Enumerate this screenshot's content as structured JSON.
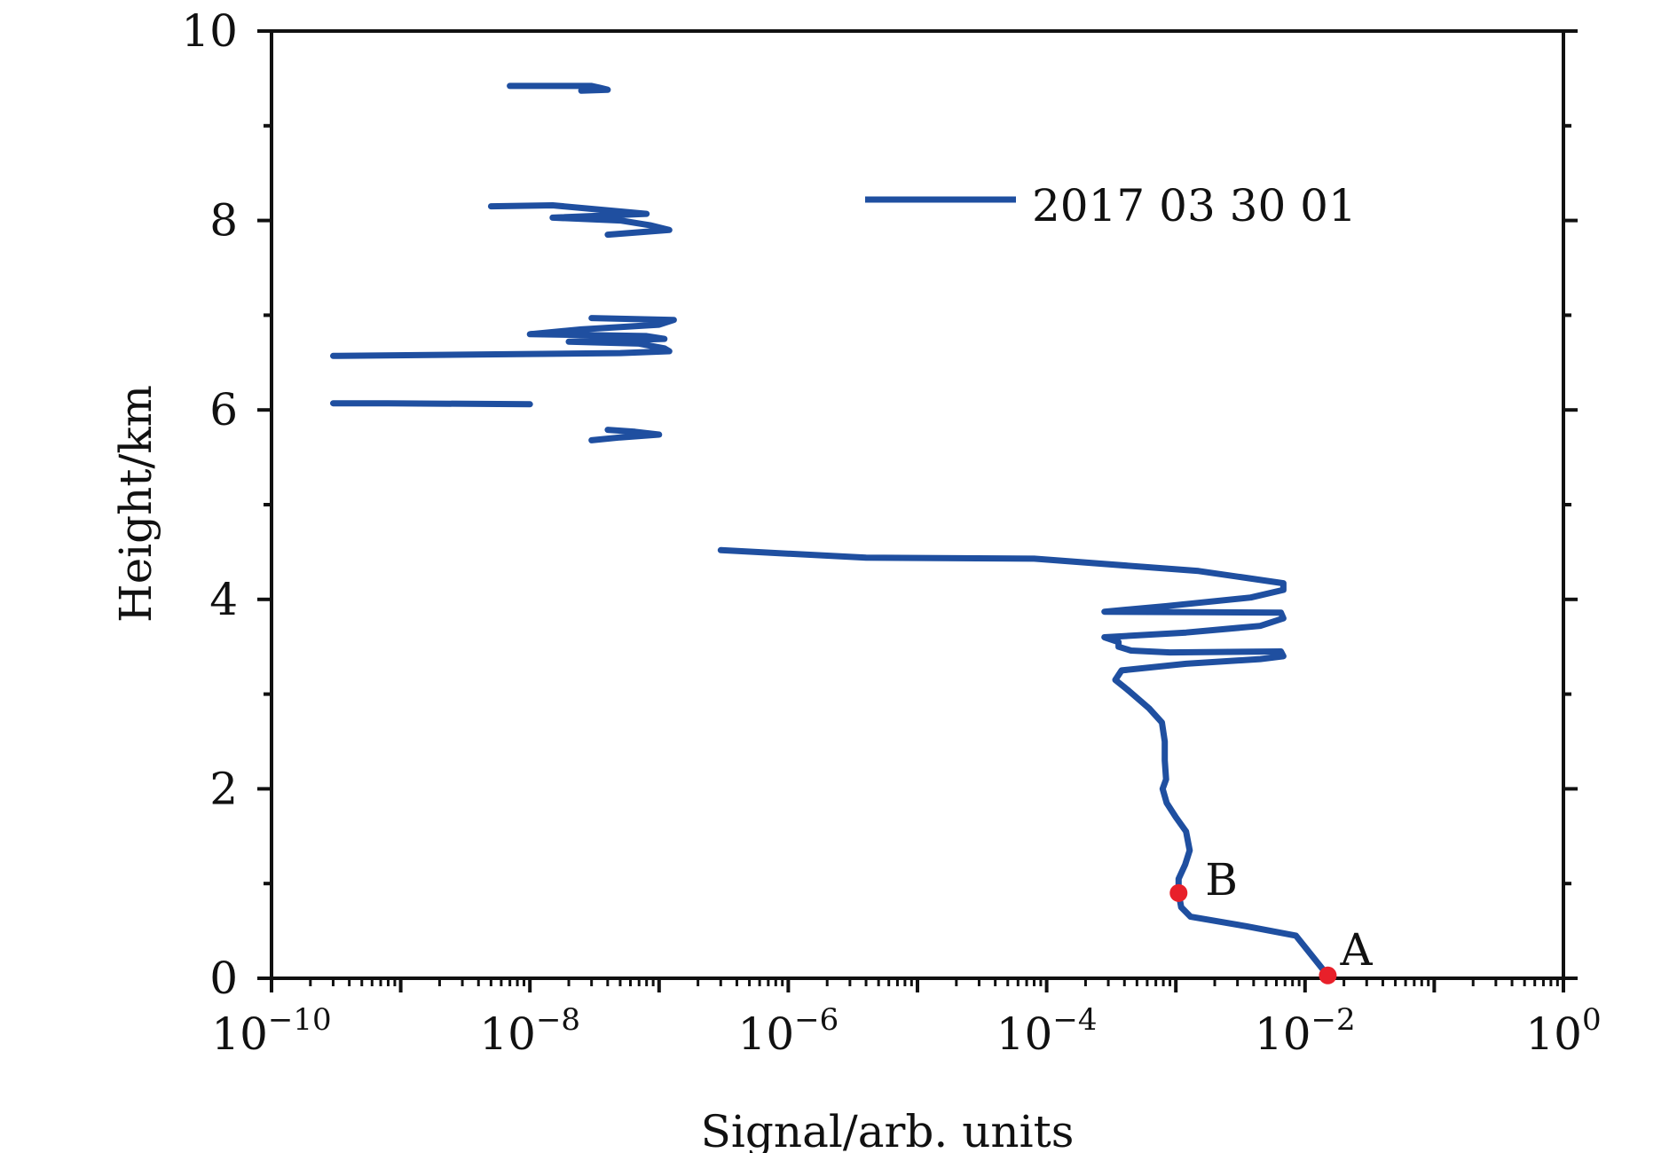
{
  "chart_data": {
    "type": "line",
    "title": "",
    "xlabel": "Signal/arb. units",
    "ylabel": "Height/km",
    "xscale": "log",
    "xlim": [
      1e-10,
      1
    ],
    "ylim": [
      0,
      10
    ],
    "grid": false,
    "legend_position": "top-right",
    "colors": {
      "series": "#1f4fa0",
      "points": "#e8202a",
      "axis": "#111111"
    },
    "x_ticks": [
      {
        "base": "10",
        "exp": "−10"
      },
      {
        "base": "10",
        "exp": "−8"
      },
      {
        "base": "10",
        "exp": "−6"
      },
      {
        "base": "10",
        "exp": "−4"
      },
      {
        "base": "10",
        "exp": "−2"
      },
      {
        "base": "10",
        "exp": "0"
      }
    ],
    "y_ticks": [
      "0",
      "2",
      "4",
      "6",
      "8",
      "10"
    ],
    "series": [
      {
        "name": "2017 03 30 01",
        "segments": [
          [
            [
              0.015,
              0.03
            ],
            [
              0.0085,
              0.45
            ],
            [
              0.0035,
              0.55
            ],
            [
              0.0013,
              0.65
            ],
            [
              0.0011,
              0.75
            ],
            [
              0.00105,
              0.9
            ],
            [
              0.00105,
              1.05
            ],
            [
              0.00118,
              1.2
            ],
            [
              0.00128,
              1.35
            ],
            [
              0.0012,
              1.55
            ],
            [
              0.001,
              1.7
            ],
            [
              0.00085,
              1.85
            ],
            [
              0.00079,
              2.0
            ],
            [
              0.00084,
              2.1
            ],
            [
              0.00082,
              2.3
            ],
            [
              0.00082,
              2.5
            ],
            [
              0.00078,
              2.7
            ],
            [
              0.00062,
              2.85
            ],
            [
              0.00042,
              3.05
            ],
            [
              0.00034,
              3.15
            ],
            [
              0.00038,
              3.25
            ],
            [
              0.0012,
              3.32
            ],
            [
              0.0045,
              3.37
            ],
            [
              0.0068,
              3.4
            ],
            [
              0.0065,
              3.45
            ],
            [
              0.0009,
              3.44
            ],
            [
              0.00045,
              3.46
            ],
            [
              0.00036,
              3.5
            ],
            [
              0.00036,
              3.55
            ],
            [
              0.00028,
              3.6
            ],
            [
              0.0012,
              3.65
            ],
            [
              0.0045,
              3.72
            ],
            [
              0.0068,
              3.8
            ],
            [
              0.0065,
              3.86
            ],
            [
              0.00028,
              3.87
            ],
            [
              0.00085,
              3.93
            ],
            [
              0.0038,
              4.02
            ],
            [
              0.0068,
              4.1
            ],
            [
              0.0068,
              4.17
            ],
            [
              0.0015,
              4.3
            ],
            [
              8e-05,
              4.43
            ],
            [
              4e-06,
              4.44
            ],
            [
              3e-07,
              4.52
            ]
          ],
          [
            [
              7e-09,
              9.42
            ],
            [
              3e-08,
              9.42
            ],
            [
              3.5e-08,
              9.4
            ],
            [
              4e-08,
              9.38
            ],
            [
              2.5e-08,
              9.37
            ]
          ],
          [
            [
              5e-09,
              8.15
            ],
            [
              1.5e-08,
              8.16
            ],
            [
              8e-08,
              8.07
            ],
            [
              1.5e-08,
              8.03
            ],
            [
              5e-08,
              8.0
            ],
            [
              8.5e-08,
              7.95
            ],
            [
              1.2e-07,
              7.9
            ],
            [
              4e-08,
              7.85
            ]
          ],
          [
            [
              3e-08,
              6.97
            ],
            [
              1.3e-07,
              6.95
            ],
            [
              1e-07,
              6.9
            ],
            [
              2.5e-08,
              6.85
            ],
            [
              1e-08,
              6.8
            ],
            [
              8e-08,
              6.78
            ],
            [
              1.1e-07,
              6.75
            ],
            [
              2e-08,
              6.72
            ],
            [
              7e-08,
              6.7
            ],
            [
              1.1e-07,
              6.65
            ],
            [
              1.2e-07,
              6.62
            ],
            [
              5e-08,
              6.6
            ],
            [
              3e-10,
              6.57
            ]
          ],
          [
            [
              3e-10,
              6.07
            ],
            [
              8e-10,
              6.07
            ],
            [
              1e-08,
              6.06
            ]
          ],
          [
            [
              4e-08,
              5.79
            ],
            [
              6.5e-08,
              5.77
            ],
            [
              1e-07,
              5.74
            ],
            [
              5e-08,
              5.71
            ],
            [
              3e-08,
              5.68
            ]
          ]
        ]
      }
    ],
    "points": [
      {
        "label": "A",
        "x": 0.015,
        "y": 0.03
      },
      {
        "label": "B",
        "x": 0.00105,
        "y": 0.9
      }
    ]
  }
}
